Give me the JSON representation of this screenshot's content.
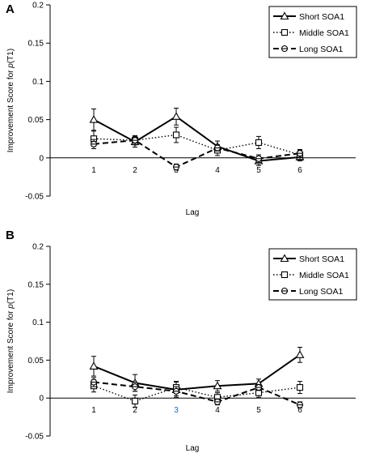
{
  "chart_data": [
    {
      "panel": "A",
      "type": "line",
      "ylabel": "Improvement Score for p(T1)",
      "ylabel_prefix": "Improvement Score for ",
      "ylabel_italic": "p",
      "ylabel_suffix": "(T1)",
      "xlabel": "Lag",
      "ylim": [
        -0.05,
        0.2
      ],
      "yticks": [
        "0.2",
        "0.15",
        "0.1",
        "0.05",
        "0",
        "-0.05"
      ],
      "ytick_values": [
        0.2,
        0.15,
        0.1,
        0.05,
        0,
        -0.05
      ],
      "categories": [
        "1",
        "2",
        "3",
        "4",
        "5",
        "6"
      ],
      "category_colors": [
        "#000000",
        "#000000",
        "#000000",
        "#000000",
        "#000000",
        "#000000"
      ],
      "grid": false,
      "legend_position": "top-right",
      "series": [
        {
          "name": "Short SOA1",
          "style": "solid",
          "marker": "triangle",
          "values": [
            0.05,
            0.021,
            0.054,
            0.015,
            -0.004,
            0.001
          ],
          "errors": [
            0.014,
            0.007,
            0.011,
            0.007,
            0.006,
            0.005
          ]
        },
        {
          "name": "Middle SOA1",
          "style": "dotted",
          "marker": "square",
          "values": [
            0.025,
            0.023,
            0.03,
            0.01,
            0.02,
            0.004
          ],
          "errors": [
            0.01,
            0.006,
            0.01,
            0.007,
            0.008,
            0.006
          ]
        },
        {
          "name": "Long SOA1",
          "style": "dashed",
          "marker": "circle",
          "values": [
            0.018,
            0.023,
            -0.012,
            0.013,
            -0.001,
            0.006
          ],
          "errors": [
            0.006,
            0.006,
            0.004,
            0.004,
            0.005,
            0.005
          ]
        }
      ]
    },
    {
      "panel": "B",
      "type": "line",
      "ylabel": "Improvement Score for p(T1)",
      "ylabel_prefix": "Improvement Score for ",
      "ylabel_italic": "p",
      "ylabel_suffix": "(T1)",
      "xlabel": "Lag",
      "ylim": [
        -0.05,
        0.2
      ],
      "yticks": [
        "0.2",
        "0.15",
        "0.1",
        "0.05",
        "0",
        "-0.05"
      ],
      "ytick_values": [
        0.2,
        0.15,
        0.1,
        0.05,
        0,
        -0.05
      ],
      "categories": [
        "1",
        "2",
        "3",
        "4",
        "5",
        "6"
      ],
      "category_colors": [
        "#000000",
        "#000000",
        "#1f6fb5",
        "#000000",
        "#000000",
        "#000000"
      ],
      "grid": false,
      "legend_position": "top-right",
      "series": [
        {
          "name": "Short SOA1",
          "style": "solid",
          "marker": "triangle",
          "values": [
            0.042,
            0.02,
            0.011,
            0.016,
            0.019,
            0.057
          ],
          "errors": [
            0.013,
            0.011,
            0.01,
            0.007,
            0.006,
            0.01
          ]
        },
        {
          "name": "Middle SOA1",
          "style": "dotted",
          "marker": "square",
          "values": [
            0.016,
            -0.004,
            0.014,
            0.001,
            0.007,
            0.014
          ],
          "errors": [
            0.008,
            0.008,
            0.008,
            0.006,
            0.006,
            0.008
          ]
        },
        {
          "name": "Long SOA1",
          "style": "dashed",
          "marker": "circle",
          "values": [
            0.021,
            0.015,
            0.009,
            -0.005,
            0.014,
            -0.009
          ],
          "errors": [
            0.006,
            0.006,
            0.006,
            0.004,
            0.004,
            0.004
          ]
        }
      ]
    }
  ]
}
